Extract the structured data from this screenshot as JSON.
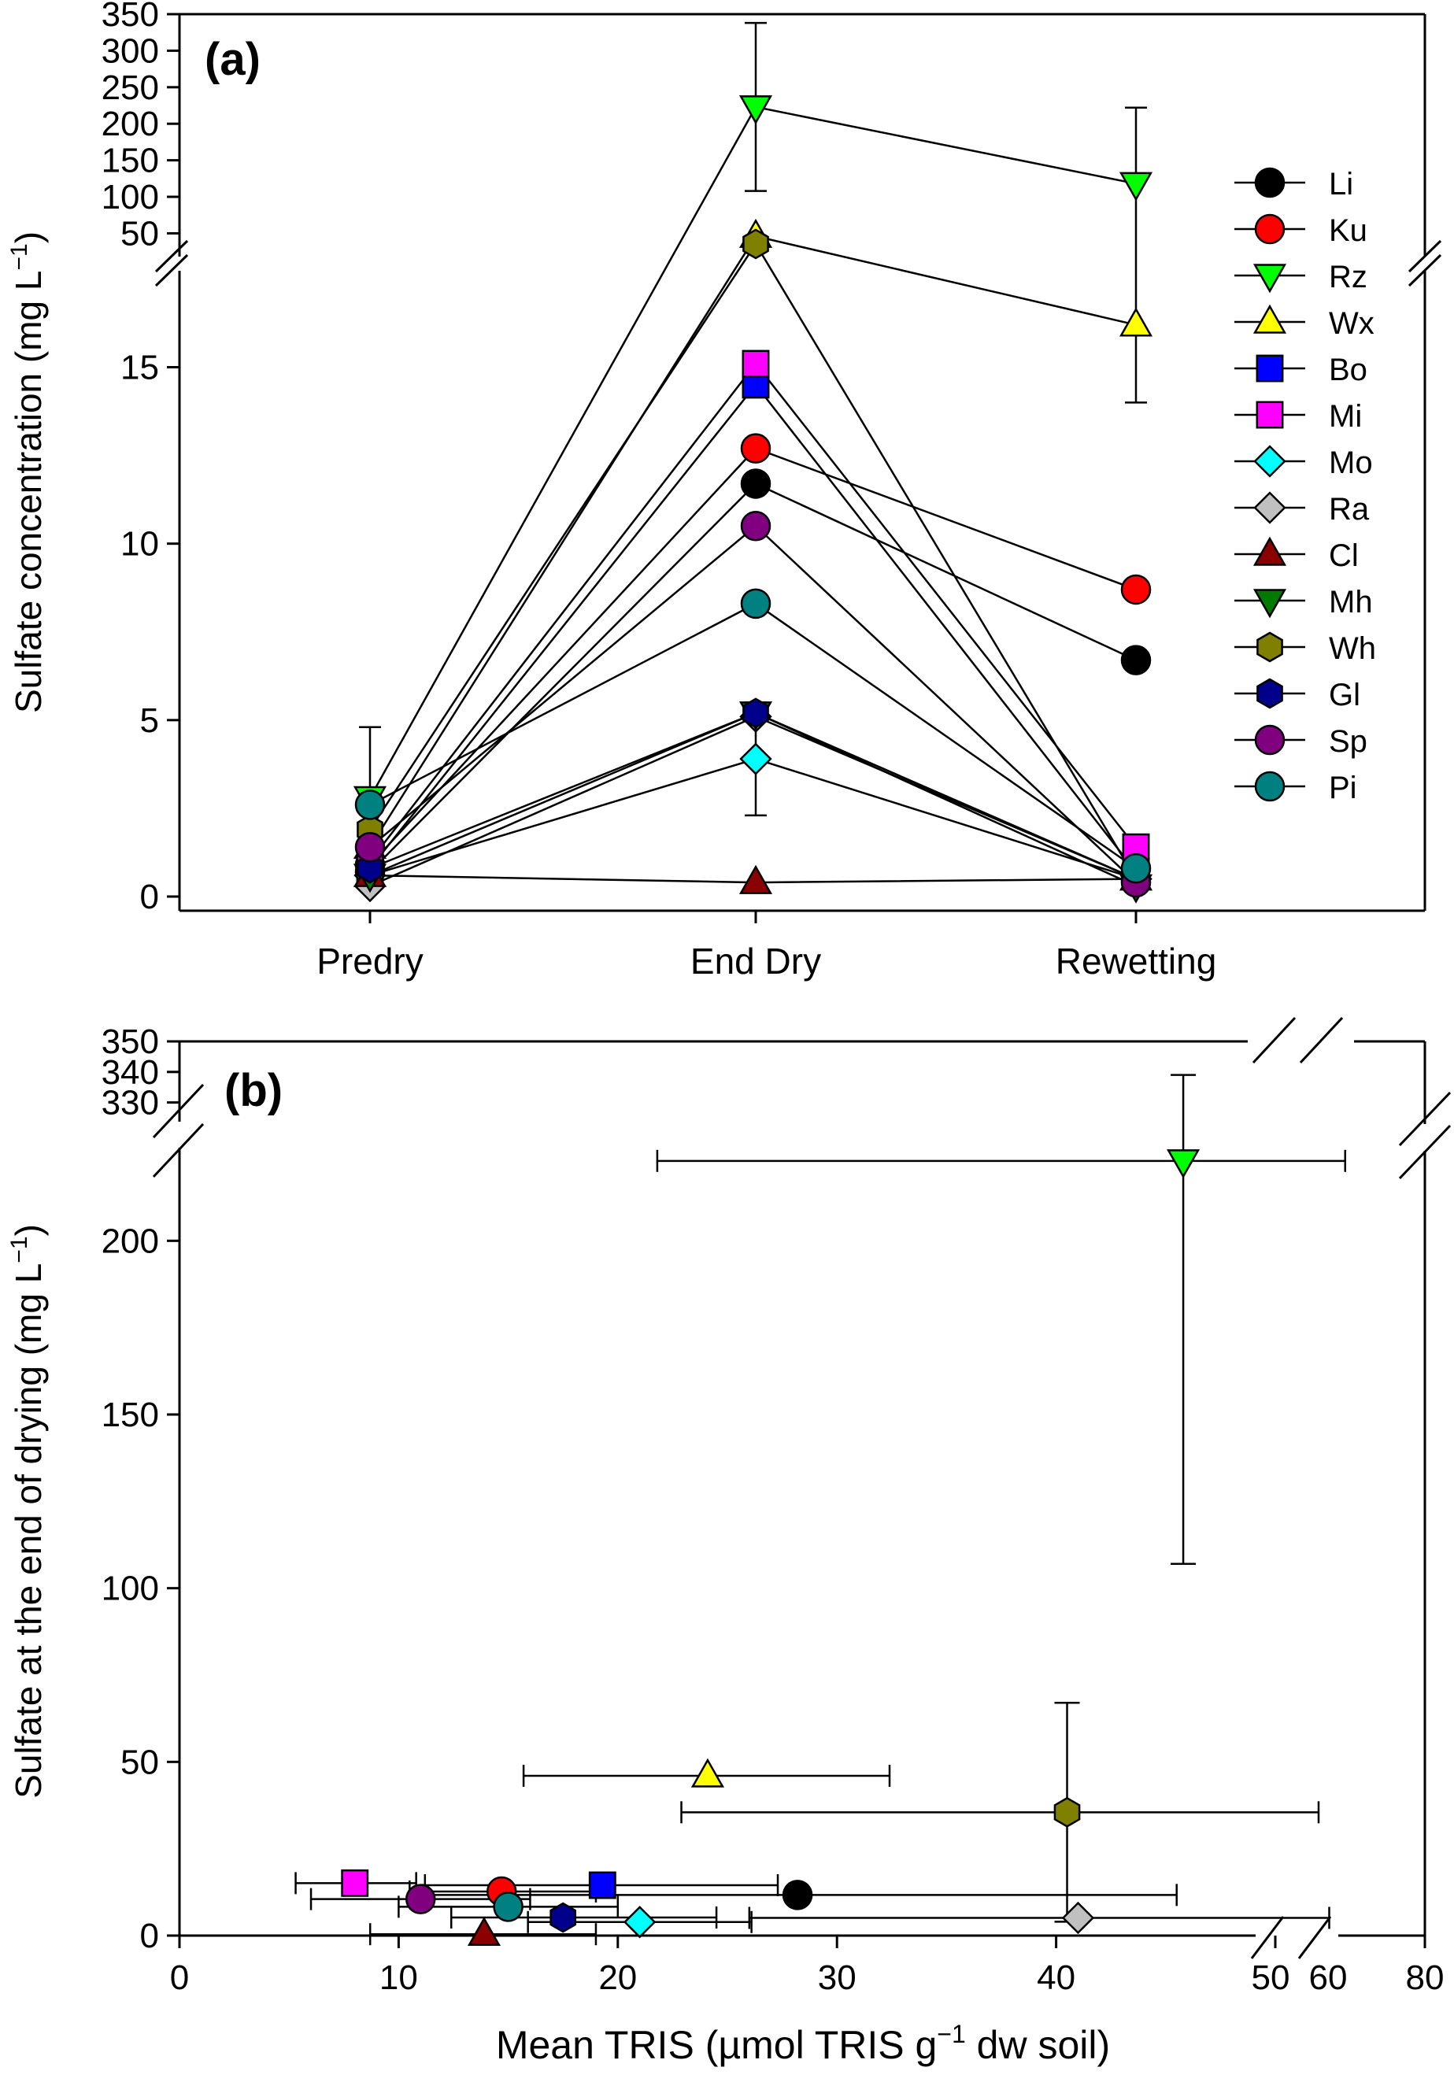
{
  "chart_data": [
    {
      "type": "line",
      "panel_label": "(a)",
      "ylabel": "Sulfate concentration (mg L",
      "ylabel_sup": "−1",
      "ylabel_close": ")",
      "categories": [
        "Predry",
        "End Dry",
        "Rewetting"
      ],
      "ylim_lower": [
        0,
        18
      ],
      "ylim_upper": [
        30,
        350
      ],
      "yticks_lower": [
        0,
        5,
        10,
        15
      ],
      "yticks_upper": [
        50,
        100,
        150,
        200,
        250,
        300,
        350
      ],
      "legend_position": "right",
      "series": [
        {
          "name": "Li",
          "color": "#000000",
          "marker": "circle",
          "values": [
            0.7,
            11.7,
            6.7
          ]
        },
        {
          "name": "Ku",
          "color": "#ff0000",
          "marker": "circle",
          "values": [
            0.9,
            12.7,
            8.7
          ]
        },
        {
          "name": "Rz",
          "color": "#00ff00",
          "marker": "triangle-down",
          "values": [
            2.8,
            223,
            118
          ],
          "errors": [
            2.0,
            115,
            104
          ]
        },
        {
          "name": "Wx",
          "color": "#ffff00",
          "marker": "triangle-up",
          "values": [
            1.4,
            46,
            16.2
          ]
        },
        {
          "name": "Bo",
          "color": "#0000ff",
          "marker": "square",
          "values": [
            0.8,
            14.5,
            0.7
          ]
        },
        {
          "name": "Mi",
          "color": "#ff00ff",
          "marker": "square",
          "values": [
            1.0,
            15.1,
            1.4
          ]
        },
        {
          "name": "Mo",
          "color": "#00ffff",
          "marker": "diamond",
          "values": [
            0.6,
            3.9,
            0.5
          ],
          "errors": [
            null,
            1.6,
            null
          ]
        },
        {
          "name": "Ra",
          "color": "#c0c0c0",
          "marker": "diamond",
          "values": [
            0.3,
            5.1,
            0.5
          ]
        },
        {
          "name": "Cl",
          "color": "#8b0000",
          "marker": "triangle-up",
          "values": [
            0.6,
            0.4,
            0.5
          ]
        },
        {
          "name": "Mh",
          "color": "#007a00",
          "marker": "triangle-down",
          "values": [
            0.6,
            5.2,
            0.3
          ]
        },
        {
          "name": "Wh",
          "color": "#808000",
          "marker": "hexagon",
          "values": [
            1.9,
            35.5,
            0.5
          ]
        },
        {
          "name": "Gl",
          "color": "#00008b",
          "marker": "hexagon",
          "values": [
            0.8,
            5.2,
            0.5
          ]
        },
        {
          "name": "Sp",
          "color": "#800080",
          "marker": "circle",
          "values": [
            1.4,
            10.5,
            0.4
          ]
        },
        {
          "name": "Pi",
          "color": "#008080",
          "marker": "circle",
          "values": [
            2.6,
            8.3,
            0.8
          ]
        }
      ]
    },
    {
      "type": "scatter",
      "panel_label": "(b)",
      "xlabel": "Mean TRIS (µmol TRIS g",
      "xlabel_sup": "−1",
      "xlabel_close": " dw soil)",
      "ylabel": "Sulfate at the end of drying (mg L",
      "ylabel_sup": "−1",
      "ylabel_close": ")",
      "xlim_lower": [
        0,
        50
      ],
      "xlim_upper": [
        60,
        80
      ],
      "ylim_lower": [
        0,
        225
      ],
      "ylim_upper": [
        325,
        350
      ],
      "xtick_labels_lower": [
        "0",
        "10",
        "20",
        "30",
        "40",
        "50"
      ],
      "xtick_labels_upper": [
        "60",
        "80"
      ],
      "yticks_lower": [
        0,
        50,
        100,
        150,
        200
      ],
      "yticks_upper": [
        330,
        340,
        350
      ],
      "points": [
        {
          "name": "Li",
          "color": "#000000",
          "marker": "circle",
          "x": 28.2,
          "y": 11.7,
          "xerr": [
            11.1,
            45.5
          ]
        },
        {
          "name": "Ku",
          "color": "#ff0000",
          "marker": "circle",
          "x": 14.7,
          "y": 12.7,
          "xerr": [
            10.5,
            19.0
          ]
        },
        {
          "name": "Rz",
          "color": "#00ff00",
          "marker": "triangle-down",
          "x": 45.8,
          "y": 223,
          "xerr": [
            21.8,
            65.0
          ],
          "yerr": [
            107,
            339
          ]
        },
        {
          "name": "Wx",
          "color": "#ffff00",
          "marker": "triangle-up",
          "x": 24.1,
          "y": 46,
          "xerr": [
            15.7,
            32.4
          ]
        },
        {
          "name": "Bo",
          "color": "#0000ff",
          "marker": "square",
          "x": 19.3,
          "y": 14.5,
          "xerr": [
            11.2,
            27.3
          ]
        },
        {
          "name": "Mi",
          "color": "#ff00ff",
          "marker": "square",
          "x": 8.0,
          "y": 15.1,
          "xerr": [
            5.3,
            10.8
          ]
        },
        {
          "name": "Mo",
          "color": "#00ffff",
          "marker": "diamond",
          "x": 21.0,
          "y": 3.9,
          "xerr": [
            15.9,
            26.1
          ]
        },
        {
          "name": "Ra",
          "color": "#c0c0c0",
          "marker": "diamond",
          "x": 41.0,
          "y": 5.1,
          "xerr": [
            26.0,
            62.0
          ]
        },
        {
          "name": "Cl",
          "color": "#8b0000",
          "marker": "triangle-up",
          "x": 13.9,
          "y": 0.4,
          "xerr": [
            8.7,
            19.0
          ]
        },
        {
          "name": "Wh",
          "color": "#808000",
          "marker": "hexagon",
          "x": 40.5,
          "y": 35.5,
          "xerr": [
            22.9,
            60.0
          ],
          "yerr": [
            4.0,
            67.0
          ]
        },
        {
          "name": "Gl",
          "color": "#00008b",
          "marker": "hexagon",
          "x": 17.5,
          "y": 5.2,
          "xerr": [
            12.4,
            24.5
          ]
        },
        {
          "name": "Sp",
          "color": "#800080",
          "marker": "circle",
          "x": 11.0,
          "y": 10.5,
          "xerr": [
            6.0,
            16.0
          ]
        },
        {
          "name": "Pi",
          "color": "#008080",
          "marker": "circle",
          "x": 15.0,
          "y": 8.3,
          "xerr": [
            10.0,
            20.0
          ]
        }
      ]
    }
  ]
}
